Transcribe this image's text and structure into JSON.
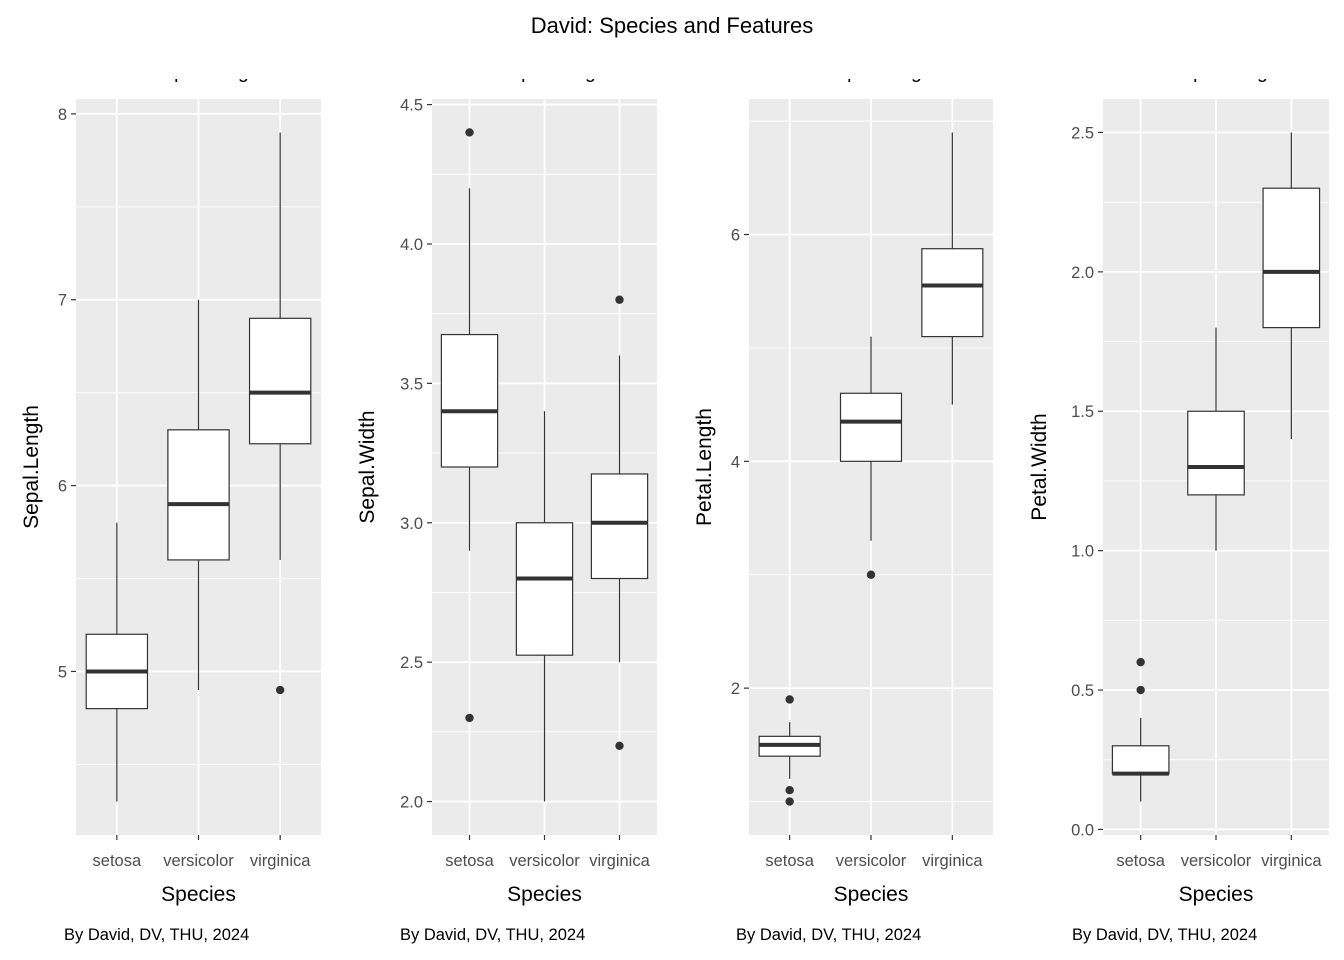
{
  "title": "David: Species and Features",
  "chart_data": [
    {
      "type": "boxplot",
      "title": "Species VS Sepal Lengt",
      "xlabel": "Species",
      "ylabel": "Sepal.Length",
      "caption": "By David, DV, THU, 2024",
      "categories": [
        "setosa",
        "versicolor",
        "virginica"
      ],
      "yticks": [
        5,
        6,
        7,
        8
      ],
      "ytick_labels": [
        "5",
        "6",
        "7",
        "8"
      ],
      "ylim": [
        4.12,
        8.08
      ],
      "boxes": [
        {
          "min": 4.3,
          "q1": 4.8,
          "median": 5.0,
          "q3": 5.2,
          "max": 5.8,
          "outliers": []
        },
        {
          "min": 4.9,
          "q1": 5.6,
          "median": 5.9,
          "q3": 6.3,
          "max": 7.0,
          "outliers": []
        },
        {
          "min": 5.6,
          "q1": 6.225,
          "median": 6.5,
          "q3": 6.9,
          "max": 7.9,
          "outliers": [
            4.9
          ]
        }
      ]
    },
    {
      "type": "boxplot",
      "title": "Species VS Sepal Leng",
      "xlabel": "Species",
      "ylabel": "Sepal.Width",
      "caption": "By David, DV, THU, 2024",
      "categories": [
        "setosa",
        "versicolor",
        "virginica"
      ],
      "yticks": [
        2.0,
        2.5,
        3.0,
        3.5,
        4.0,
        4.5
      ],
      "ytick_labels": [
        "2.0",
        "2.5",
        "3.0",
        "3.5",
        "4.0",
        "4.5"
      ],
      "ylim": [
        1.88,
        4.52
      ],
      "boxes": [
        {
          "min": 2.9,
          "q1": 3.2,
          "median": 3.4,
          "q3": 3.675,
          "max": 4.2,
          "outliers": [
            4.4,
            2.3
          ]
        },
        {
          "min": 2.0,
          "q1": 2.525,
          "median": 2.8,
          "q3": 3.0,
          "max": 3.4,
          "outliers": []
        },
        {
          "min": 2.5,
          "q1": 2.8,
          "median": 3.0,
          "q3": 3.175,
          "max": 3.6,
          "outliers": [
            3.8,
            2.2
          ]
        }
      ]
    },
    {
      "type": "boxplot",
      "title": "Species VS Sepal Lengt",
      "xlabel": "Species",
      "ylabel": "Petal.Length",
      "caption": "By David, DV, THU, 2024",
      "categories": [
        "setosa",
        "versicolor",
        "virginica"
      ],
      "yticks": [
        2,
        4,
        6
      ],
      "ytick_labels": [
        "2",
        "4",
        "6"
      ],
      "ylim": [
        0.705,
        7.195
      ],
      "boxes": [
        {
          "min": 1.2,
          "q1": 1.4,
          "median": 1.5,
          "q3": 1.575,
          "max": 1.7,
          "outliers": [
            1.9,
            1.1,
            1.0
          ]
        },
        {
          "min": 3.3,
          "q1": 4.0,
          "median": 4.35,
          "q3": 4.6,
          "max": 5.1,
          "outliers": [
            3.0
          ]
        },
        {
          "min": 4.5,
          "q1": 5.1,
          "median": 5.55,
          "q3": 5.875,
          "max": 6.9,
          "outliers": []
        }
      ]
    },
    {
      "type": "boxplot",
      "title": "Species VS Sepal Leng",
      "xlabel": "Species",
      "ylabel": "Petal.Width",
      "caption": "By David, DV, THU, 2024",
      "categories": [
        "setosa",
        "versicolor",
        "virginica"
      ],
      "yticks": [
        0.0,
        0.5,
        1.0,
        1.5,
        2.0,
        2.5
      ],
      "ytick_labels": [
        "0.0",
        "0.5",
        "1.0",
        "1.5",
        "2.0",
        "2.5"
      ],
      "ylim": [
        -0.02,
        2.62
      ],
      "boxes": [
        {
          "min": 0.1,
          "q1": 0.2,
          "median": 0.2,
          "q3": 0.3,
          "max": 0.4,
          "outliers": [
            0.6,
            0.5
          ]
        },
        {
          "min": 1.0,
          "q1": 1.2,
          "median": 1.3,
          "q3": 1.5,
          "max": 1.8,
          "outliers": []
        },
        {
          "min": 1.4,
          "q1": 1.8,
          "median": 2.0,
          "q3": 2.3,
          "max": 2.5,
          "outliers": []
        }
      ]
    }
  ]
}
